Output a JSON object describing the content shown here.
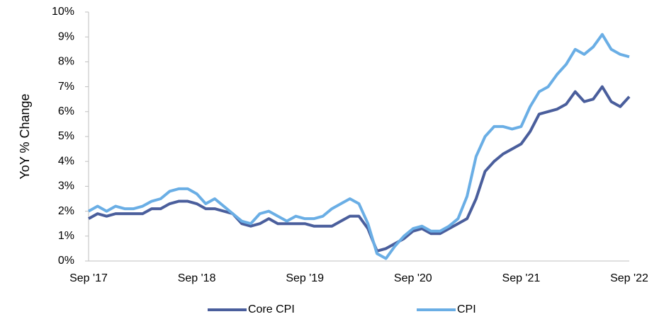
{
  "chart_data": {
    "type": "line",
    "y_label": "YoY % Change",
    "categories": [
      "Sep '17",
      null,
      null,
      null,
      null,
      null,
      null,
      null,
      null,
      null,
      null,
      null,
      "Sep '18",
      null,
      null,
      null,
      null,
      null,
      null,
      null,
      null,
      null,
      null,
      null,
      "Sep '19",
      null,
      null,
      null,
      null,
      null,
      null,
      null,
      null,
      null,
      null,
      null,
      "Sep '20",
      null,
      null,
      null,
      null,
      null,
      null,
      null,
      null,
      null,
      null,
      null,
      "Sep '21",
      null,
      null,
      null,
      null,
      null,
      null,
      null,
      null,
      null,
      null,
      null,
      "Sep '22"
    ],
    "series": [
      {
        "name": "Core CPI",
        "color": "#4a5e9c",
        "values": [
          1.7,
          1.9,
          1.8,
          1.9,
          1.9,
          1.9,
          1.9,
          2.1,
          2.1,
          2.3,
          2.4,
          2.4,
          2.3,
          2.1,
          2.1,
          2.0,
          1.9,
          1.5,
          1.4,
          1.5,
          1.7,
          1.5,
          1.5,
          1.5,
          1.5,
          1.4,
          1.4,
          1.4,
          1.6,
          1.8,
          1.8,
          1.3,
          0.4,
          0.5,
          0.7,
          0.9,
          1.2,
          1.3,
          1.1,
          1.1,
          1.3,
          1.5,
          1.7,
          2.5,
          3.6,
          4.0,
          4.3,
          4.5,
          4.7,
          5.2,
          5.9,
          6.0,
          6.1,
          6.3,
          6.8,
          6.4,
          6.5,
          7.0,
          6.4,
          6.2,
          6.6
        ]
      },
      {
        "name": "CPI",
        "color": "#6aaee5",
        "values": [
          2.0,
          2.2,
          2.0,
          2.2,
          2.1,
          2.1,
          2.2,
          2.4,
          2.5,
          2.8,
          2.9,
          2.9,
          2.7,
          2.3,
          2.5,
          2.2,
          1.9,
          1.6,
          1.5,
          1.9,
          2.0,
          1.8,
          1.6,
          1.8,
          1.7,
          1.7,
          1.8,
          2.1,
          2.3,
          2.5,
          2.3,
          1.5,
          0.3,
          0.1,
          0.6,
          1.0,
          1.3,
          1.4,
          1.2,
          1.2,
          1.4,
          1.7,
          2.6,
          4.2,
          5.0,
          5.4,
          5.4,
          5.3,
          5.4,
          6.2,
          6.8,
          7.0,
          7.5,
          7.9,
          8.5,
          8.3,
          8.6,
          9.1,
          8.5,
          8.3,
          8.2
        ]
      }
    ],
    "ylim": [
      0,
      10
    ],
    "yticks": [
      {
        "value": 0,
        "label": "0%"
      },
      {
        "value": 1,
        "label": "1%"
      },
      {
        "value": 2,
        "label": "2%"
      },
      {
        "value": 3,
        "label": "3%"
      },
      {
        "value": 4,
        "label": "4%"
      },
      {
        "value": 5,
        "label": "5%"
      },
      {
        "value": 6,
        "label": "6%"
      },
      {
        "value": 7,
        "label": "7%"
      },
      {
        "value": 8,
        "label": "8%"
      },
      {
        "value": 9,
        "label": "9%"
      },
      {
        "value": 10,
        "label": "10%"
      }
    ],
    "grid": false,
    "legend": "bottom"
  }
}
